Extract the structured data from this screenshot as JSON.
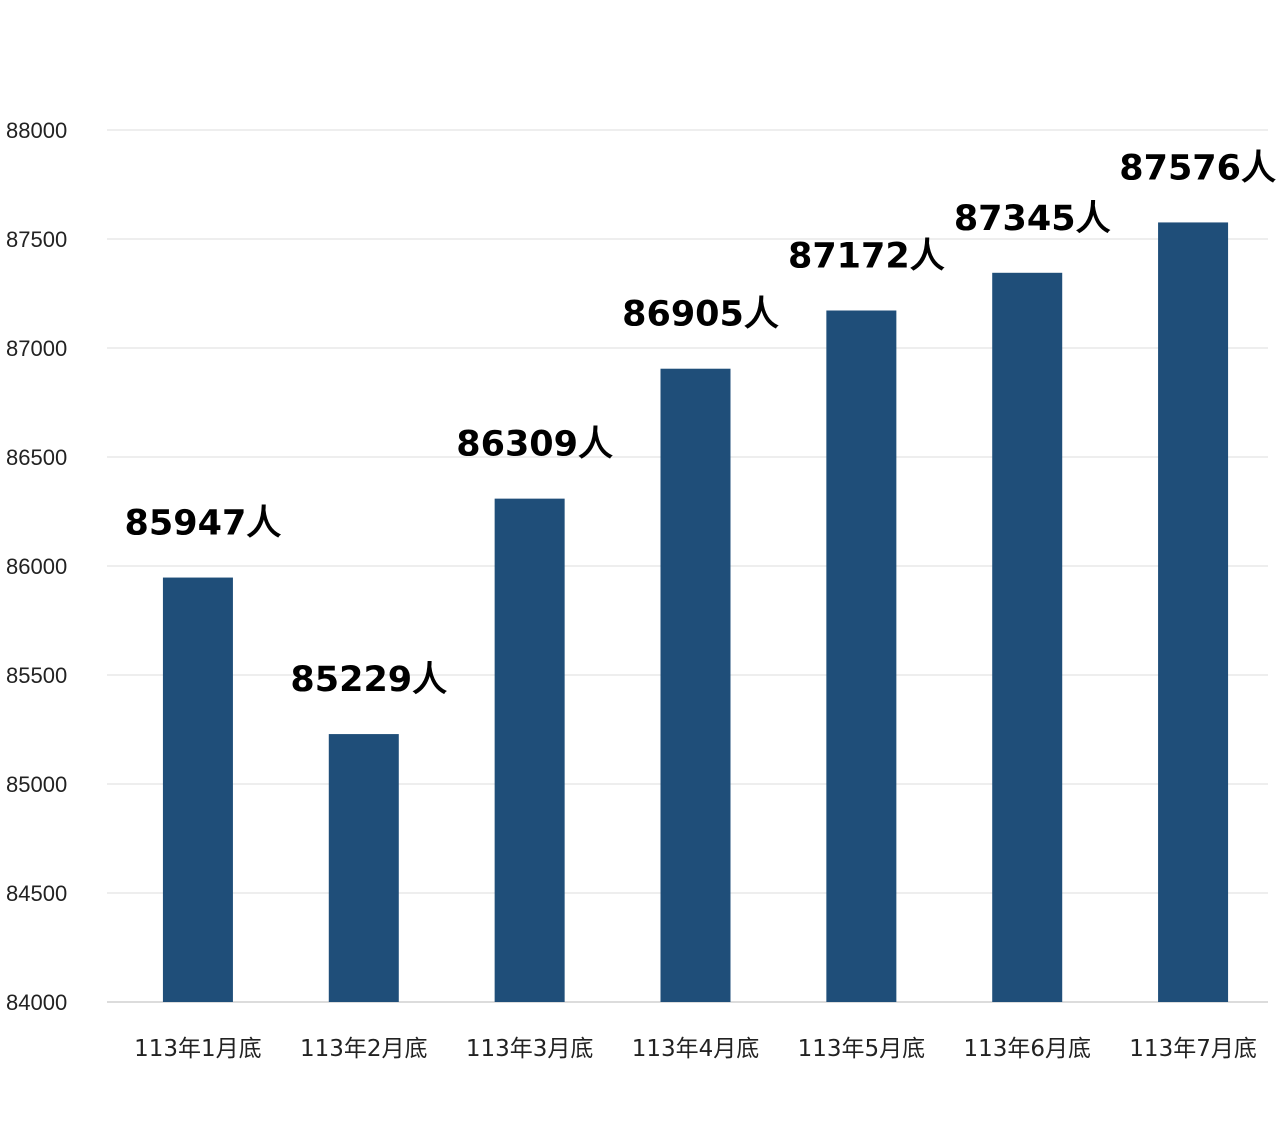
{
  "chart_data": {
    "type": "bar",
    "categories": [
      "113年1月底",
      "113年2月底",
      "113年3月底",
      "113年4月底",
      "113年5月底",
      "113年6月底",
      "113年7月底"
    ],
    "values": [
      85947,
      85229,
      86309,
      86905,
      87172,
      87345,
      87576
    ],
    "data_labels": [
      "85947人",
      "85229人",
      "86309人",
      "86905人",
      "87172人",
      "87345人",
      "87576人"
    ],
    "ylim": [
      84000,
      88000
    ],
    "yticks": [
      84000,
      84500,
      85000,
      85500,
      86000,
      86500,
      87000,
      87500,
      88000
    ],
    "grid": true,
    "bar_color": "#1f4e79",
    "title": "",
    "xlabel": "",
    "ylabel": ""
  }
}
